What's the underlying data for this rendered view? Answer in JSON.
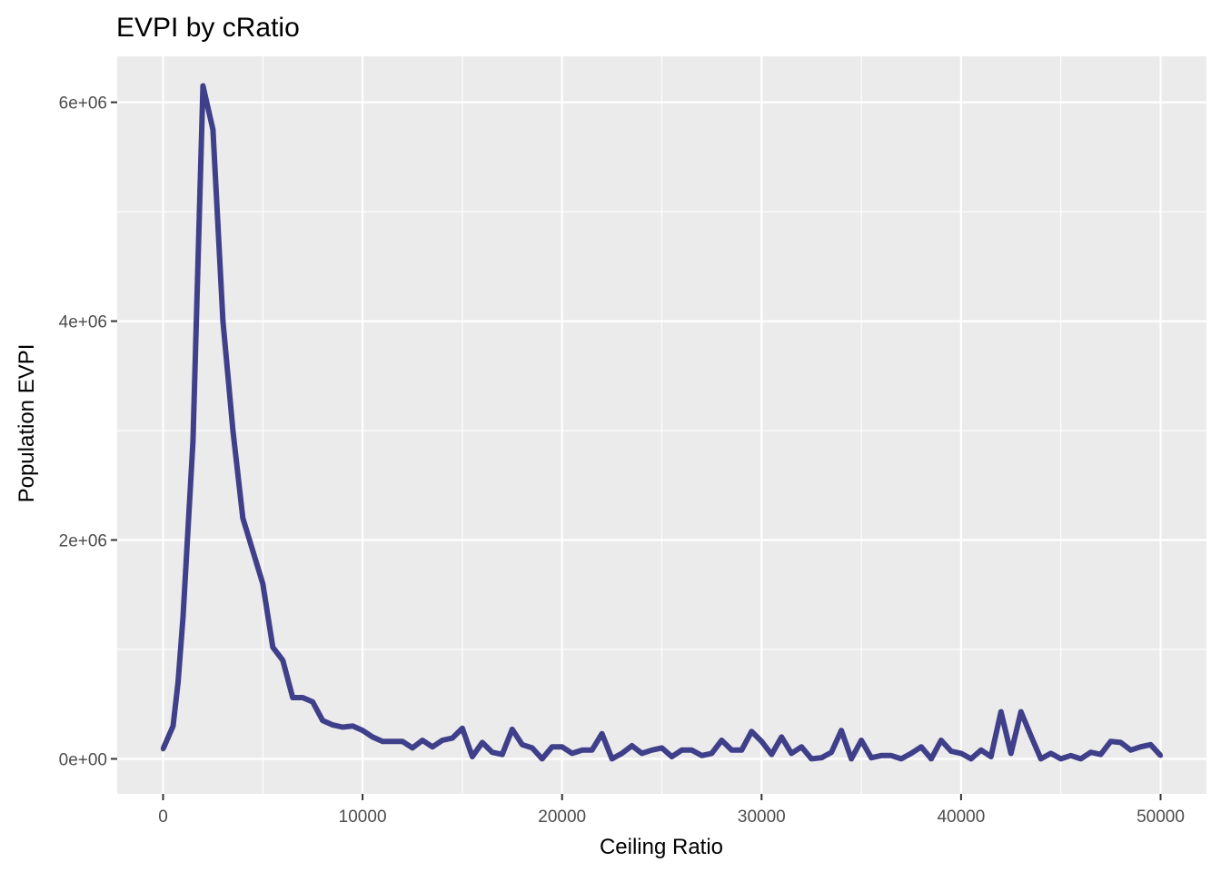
{
  "chart_data": {
    "type": "line",
    "title": "EVPI by cRatio",
    "xlabel": "Ceiling Ratio",
    "ylabel": "Population EVPI",
    "xlim": [
      -2300,
      52300
    ],
    "ylim": [
      -320000,
      6420000
    ],
    "x_ticks": [
      0,
      10000,
      20000,
      30000,
      40000,
      50000
    ],
    "x_tick_labels": [
      "0",
      "10000",
      "20000",
      "30000",
      "40000",
      "50000"
    ],
    "y_ticks": [
      0,
      2000000,
      4000000,
      6000000
    ],
    "y_tick_labels": [
      "0e+00",
      "2e+06",
      "4e+06",
      "6e+06"
    ],
    "grid": true,
    "line_color": "#3f3f8a",
    "panel_background": "#ebebeb",
    "series": [
      {
        "x": [
          0,
          500,
          750,
          1000,
          1500,
          2000,
          2500,
          3000,
          3500,
          4000,
          4500,
          5000,
          5500,
          6000,
          6500,
          7000,
          7500,
          8000,
          8500,
          9000,
          9500,
          10000,
          10500,
          11000,
          11500,
          12000,
          12500,
          13000,
          13500,
          14000,
          14500,
          15000,
          15500,
          16000,
          16500,
          17000,
          17500,
          18000,
          18500,
          19000,
          19500,
          20000,
          20500,
          21000,
          21500,
          22000,
          22500,
          23000,
          23500,
          24000,
          24500,
          25000,
          25500,
          26000,
          26500,
          27000,
          27500,
          28000,
          28500,
          29000,
          29500,
          30000,
          30500,
          31000,
          31500,
          32000,
          32500,
          33000,
          33500,
          34000,
          34500,
          35000,
          35500,
          36000,
          36500,
          37000,
          37500,
          38000,
          38500,
          39000,
          39500,
          40000,
          40500,
          41000,
          41500,
          42000,
          42500,
          43000,
          43500,
          44000,
          44500,
          45000,
          45500,
          46000,
          46500,
          47000,
          47500,
          48000,
          48500,
          49000,
          49500,
          50000
        ],
        "values": [
          90000,
          300000,
          700000,
          1300000,
          2900000,
          6150000,
          5750000,
          4000000,
          3000000,
          2200000,
          1900000,
          1600000,
          1020000,
          900000,
          560000,
          560000,
          520000,
          350000,
          310000,
          290000,
          300000,
          260000,
          200000,
          160000,
          160000,
          160000,
          100000,
          170000,
          110000,
          170000,
          190000,
          280000,
          20000,
          150000,
          60000,
          40000,
          270000,
          130000,
          100000,
          0,
          110000,
          110000,
          50000,
          80000,
          80000,
          230000,
          0,
          50000,
          120000,
          50000,
          80000,
          100000,
          20000,
          80000,
          80000,
          30000,
          50000,
          170000,
          80000,
          80000,
          250000,
          160000,
          40000,
          200000,
          50000,
          110000,
          0,
          10000,
          60000,
          260000,
          0,
          170000,
          10000,
          30000,
          30000,
          0,
          50000,
          110000,
          0,
          170000,
          70000,
          50000,
          0,
          80000,
          20000,
          430000,
          50000,
          430000,
          210000,
          0,
          50000,
          0,
          30000,
          0,
          60000,
          40000,
          160000,
          150000,
          80000,
          110000,
          130000,
          30000
        ]
      }
    ]
  }
}
